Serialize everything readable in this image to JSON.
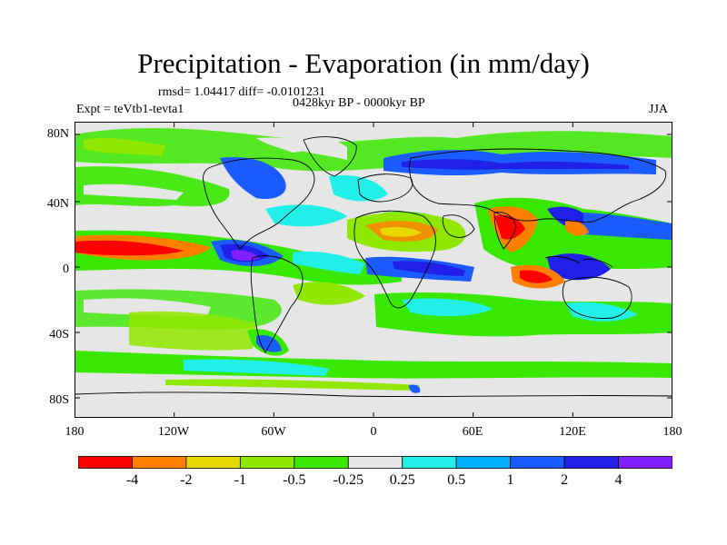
{
  "title": "Precipitation - Evaporation (in mm/day)",
  "stats_line": "rmsd= 1.04417 diff= -0.0101231",
  "period_label": "0428kyr BP - 0000kyr BP",
  "experiment_label": "Expt = teVtb1-tevta1",
  "season_label": "JJA",
  "lat_ticks": [
    "80N",
    "40N",
    "0",
    "40S",
    "80S"
  ],
  "lon_ticks": [
    "180",
    "120W",
    "60W",
    "0",
    "60E",
    "120E",
    "180"
  ],
  "colorbar": {
    "colors": [
      "#ff0000",
      "#ff8000",
      "#e6d800",
      "#90e800",
      "#39e800",
      "#e6e6e6",
      "#20f0e8",
      "#00b0ff",
      "#1a5cff",
      "#2020e8",
      "#8020ff"
    ],
    "labels": [
      "-4",
      "-2",
      "-1",
      "-0.5",
      "-0.25",
      "0.25",
      "0.5",
      "1",
      "2",
      "4"
    ]
  }
}
